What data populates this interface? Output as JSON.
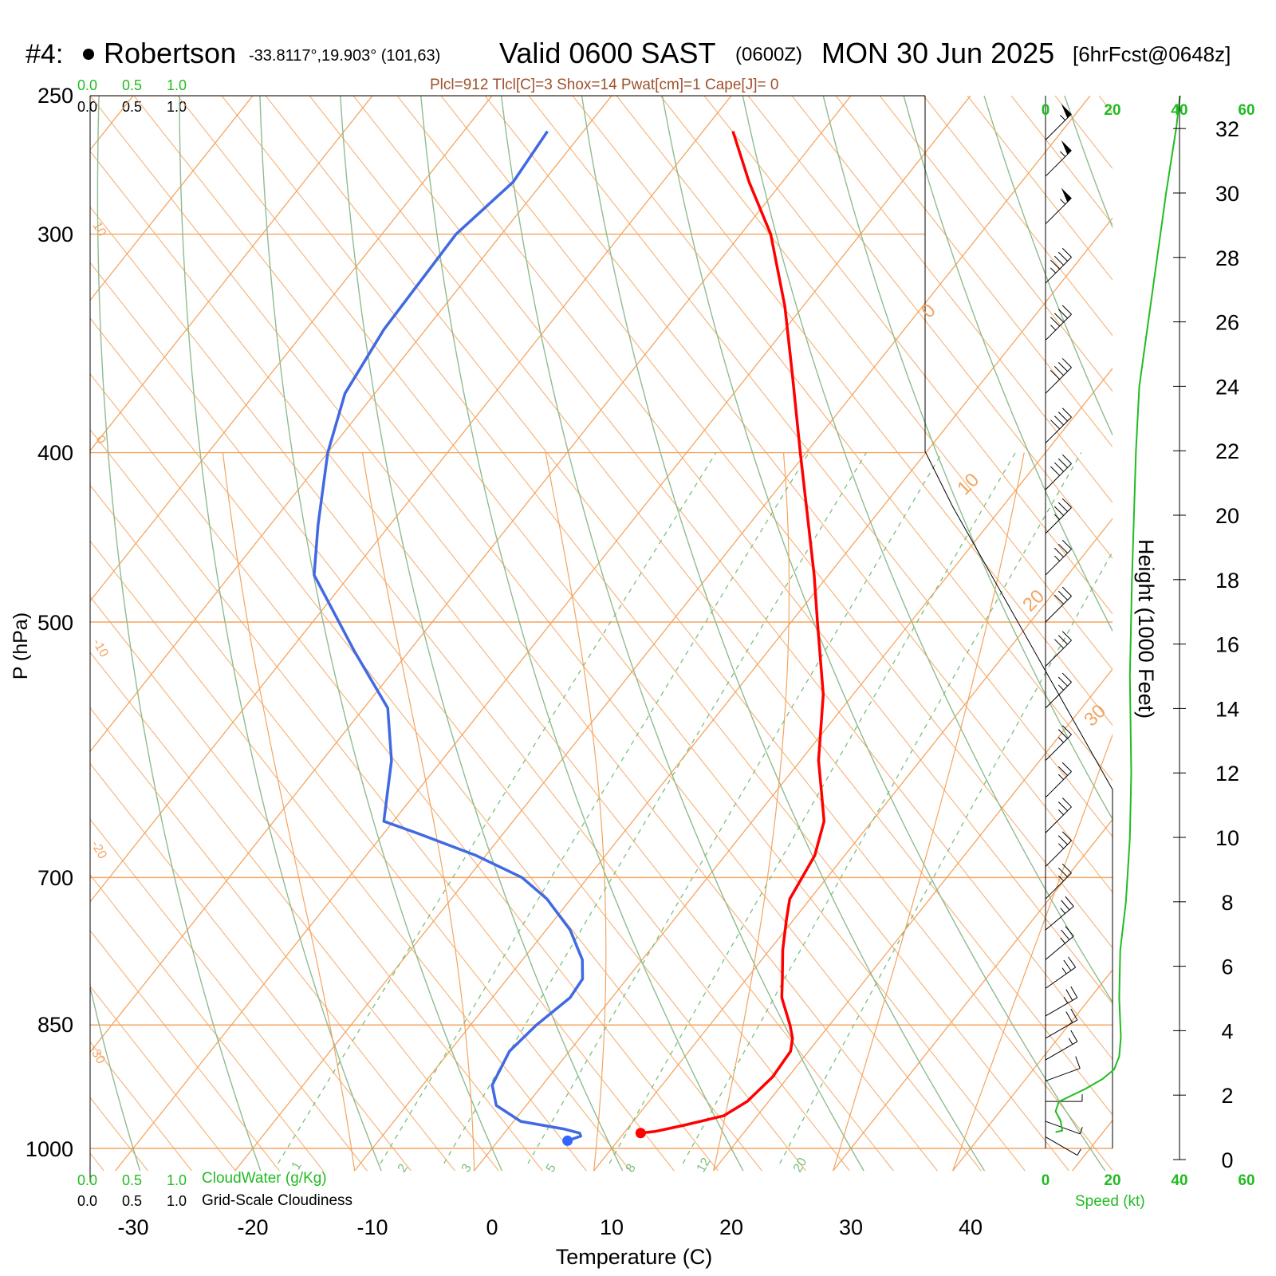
{
  "header": {
    "station_number": "#4:",
    "station_name": "Robertson",
    "coords": "-33.8117°,19.903° (101,63)",
    "valid_prefix": "Valid 0600 SAST",
    "valid_zulu": "(0600Z)",
    "valid_date": "MON 30 Jun 2025",
    "forecast": "[6hrFcst@0648z]"
  },
  "indices_line": "Plcl=912 Tlcl[C]=3 Shox=14 Pwat[cm]=1 Cape[J]= 0",
  "colors": {
    "isotherm": "#F4A460",
    "dry_adiabat": "#8FBC8F",
    "moist_adiabat": "#F4A460",
    "mixing_ratio": "#7CBF7C",
    "temperature": "#FF0000",
    "dewpoint": "#4169E1",
    "speed": "#22BB22",
    "index_text": "#A0522D",
    "dewpoint_marker": "#3366FF"
  },
  "axes": {
    "xlabel": "Temperature (C)",
    "ylabel": "P (hPa)",
    "x_ticks": [
      "-30",
      "-20",
      "-10",
      "0",
      "10",
      "20",
      "30",
      "40"
    ],
    "p_ticks": [
      "250",
      "300",
      "400",
      "500",
      "700",
      "850",
      "1000"
    ],
    "height_label": "Height (1000 Feet)",
    "height_ticks": [
      "0",
      "2",
      "4",
      "6",
      "8",
      "10",
      "12",
      "14",
      "16",
      "18",
      "20",
      "22",
      "24",
      "26",
      "28",
      "30",
      "32"
    ]
  },
  "top_scales": {
    "cloudwater": [
      "0.0",
      "0.5",
      "1.0"
    ],
    "cloudiness": [
      "0.0",
      "0.5",
      "1.0"
    ]
  },
  "bottom_scales": {
    "cloudwater": [
      "0.0",
      "0.5",
      "1.0"
    ],
    "cloudwater_label": "CloudWater (g/Kg)",
    "cloudiness": [
      "0.0",
      "0.5",
      "1.0"
    ],
    "cloudiness_label": "Grid-Scale Cloudiness"
  },
  "speed_axis": {
    "ticks": [
      "0",
      "20",
      "40",
      "60"
    ],
    "label": "Speed (kt)"
  },
  "mixing_ratio_labels": [
    "1",
    "2",
    "3",
    "5",
    "8",
    "12",
    "20"
  ],
  "isotherm_labels": [
    "10",
    "0",
    "-10",
    "-20",
    "-30"
  ],
  "diagonal_labels": [
    "0",
    "10",
    "20",
    "30"
  ],
  "chart_data": {
    "type": "line",
    "title": "Robertson Valid 0600 SAST (0600Z) MON 30 Jun 2025",
    "xlabel": "Temperature (C)",
    "ylabel": "P (hPa)",
    "xlim": [
      -33,
      37
    ],
    "ylim": [
      1030,
      250
    ],
    "grid": true,
    "series": [
      {
        "name": "Temperature",
        "color": "#FF0000",
        "points": [
          {
            "p": 980,
            "t": 11.4
          },
          {
            "p": 978,
            "t": 12.5
          },
          {
            "p": 970,
            "t": 14.5
          },
          {
            "p": 958,
            "t": 17.2
          },
          {
            "p": 940,
            "t": 18.2
          },
          {
            "p": 910,
            "t": 18.7
          },
          {
            "p": 880,
            "t": 18.5
          },
          {
            "p": 865,
            "t": 17.8
          },
          {
            "p": 850,
            "t": 16.7
          },
          {
            "p": 820,
            "t": 14.2
          },
          {
            "p": 800,
            "t": 13.0
          },
          {
            "p": 770,
            "t": 11.1
          },
          {
            "p": 740,
            "t": 9.4
          },
          {
            "p": 720,
            "t": 8.3
          },
          {
            "p": 705,
            "t": 8.0
          },
          {
            "p": 680,
            "t": 7.5
          },
          {
            "p": 650,
            "t": 6.0
          },
          {
            "p": 625,
            "t": 3.8
          },
          {
            "p": 600,
            "t": 1.5
          },
          {
            "p": 550,
            "t": -2.5
          },
          {
            "p": 500,
            "t": -7.8
          },
          {
            "p": 470,
            "t": -11.2
          },
          {
            "p": 440,
            "t": -15.0
          },
          {
            "p": 400,
            "t": -20.5
          },
          {
            "p": 360,
            "t": -26.5
          },
          {
            "p": 330,
            "t": -31.5
          },
          {
            "p": 300,
            "t": -37.5
          },
          {
            "p": 280,
            "t": -42.8
          },
          {
            "p": 262,
            "t": -47.5
          }
        ]
      },
      {
        "name": "Dewpoint",
        "color": "#4169E1",
        "points": [
          {
            "p": 990,
            "t": 5.8
          },
          {
            "p": 984,
            "t": 6.6
          },
          {
            "p": 980,
            "t": 6.3
          },
          {
            "p": 975,
            "t": 4.8
          },
          {
            "p": 965,
            "t": 0.6
          },
          {
            "p": 945,
            "t": -2.5
          },
          {
            "p": 920,
            "t": -4.2
          },
          {
            "p": 880,
            "t": -5.0
          },
          {
            "p": 850,
            "t": -4.5
          },
          {
            "p": 820,
            "t": -3.5
          },
          {
            "p": 800,
            "t": -3.7
          },
          {
            "p": 780,
            "t": -5.0
          },
          {
            "p": 750,
            "t": -8.0
          },
          {
            "p": 720,
            "t": -12.0
          },
          {
            "p": 700,
            "t": -15.5
          },
          {
            "p": 680,
            "t": -20.8
          },
          {
            "p": 660,
            "t": -27.3
          },
          {
            "p": 650,
            "t": -30.8
          },
          {
            "p": 600,
            "t": -34.2
          },
          {
            "p": 560,
            "t": -38.0
          },
          {
            "p": 520,
            "t": -44.5
          },
          {
            "p": 470,
            "t": -53.0
          },
          {
            "p": 440,
            "t": -56.0
          },
          {
            "p": 400,
            "t": -60.0
          },
          {
            "p": 370,
            "t": -62.5
          },
          {
            "p": 340,
            "t": -63.5
          },
          {
            "p": 300,
            "t": -63.8
          },
          {
            "p": 280,
            "t": -62.5
          },
          {
            "p": 262,
            "t": -63.0
          }
        ]
      }
    ],
    "speed_profile": {
      "name": "Speed (kt)",
      "color": "#22BB22",
      "points": [
        {
          "h": 0.85,
          "s": 3
        },
        {
          "h": 0.9,
          "s": 5
        },
        {
          "h": 1.2,
          "s": 4.5
        },
        {
          "h": 1.5,
          "s": 3
        },
        {
          "h": 1.8,
          "s": 4
        },
        {
          "h": 2.2,
          "s": 12
        },
        {
          "h": 2.5,
          "s": 17
        },
        {
          "h": 2.8,
          "s": 20.5
        },
        {
          "h": 3.2,
          "s": 22
        },
        {
          "h": 3.8,
          "s": 22.5
        },
        {
          "h": 5,
          "s": 22
        },
        {
          "h": 6.5,
          "s": 22.3
        },
        {
          "h": 8,
          "s": 24
        },
        {
          "h": 10,
          "s": 25.2
        },
        {
          "h": 12,
          "s": 25.6
        },
        {
          "h": 15,
          "s": 25.2
        },
        {
          "h": 18,
          "s": 25.8
        },
        {
          "h": 22,
          "s": 27
        },
        {
          "h": 24,
          "s": 28
        },
        {
          "h": 27,
          "s": 32
        },
        {
          "h": 30,
          "s": 36
        },
        {
          "h": 32,
          "s": 39
        },
        {
          "h": 33.3,
          "s": 40.5
        }
      ]
    },
    "wind_barbs": [
      {
        "p": 265,
        "dir": 315,
        "kt": 55
      },
      {
        "p": 278,
        "dir": 315,
        "kt": 55
      },
      {
        "p": 296,
        "dir": 315,
        "kt": 55
      },
      {
        "p": 320,
        "dir": 315,
        "kt": 45
      },
      {
        "p": 345,
        "dir": 315,
        "kt": 45
      },
      {
        "p": 370,
        "dir": 315,
        "kt": 40
      },
      {
        "p": 395,
        "dir": 315,
        "kt": 40
      },
      {
        "p": 420,
        "dir": 315,
        "kt": 40
      },
      {
        "p": 445,
        "dir": 315,
        "kt": 35
      },
      {
        "p": 470,
        "dir": 315,
        "kt": 35
      },
      {
        "p": 500,
        "dir": 315,
        "kt": 30
      },
      {
        "p": 530,
        "dir": 315,
        "kt": 30
      },
      {
        "p": 560,
        "dir": 315,
        "kt": 25
      },
      {
        "p": 600,
        "dir": 315,
        "kt": 25
      },
      {
        "p": 630,
        "dir": 315,
        "kt": 25
      },
      {
        "p": 660,
        "dir": 315,
        "kt": 25
      },
      {
        "p": 690,
        "dir": 315,
        "kt": 25
      },
      {
        "p": 720,
        "dir": 315,
        "kt": 25
      },
      {
        "p": 750,
        "dir": 310,
        "kt": 25
      },
      {
        "p": 780,
        "dir": 310,
        "kt": 25
      },
      {
        "p": 810,
        "dir": 305,
        "kt": 25
      },
      {
        "p": 840,
        "dir": 300,
        "kt": 25
      },
      {
        "p": 865,
        "dir": 300,
        "kt": 20
      },
      {
        "p": 890,
        "dir": 300,
        "kt": 15
      },
      {
        "p": 915,
        "dir": 290,
        "kt": 10
      },
      {
        "p": 940,
        "dir": 270,
        "kt": 5
      },
      {
        "p": 965,
        "dir": 250,
        "kt": 5
      },
      {
        "p": 985,
        "dir": 240,
        "kt": 5
      }
    ]
  }
}
